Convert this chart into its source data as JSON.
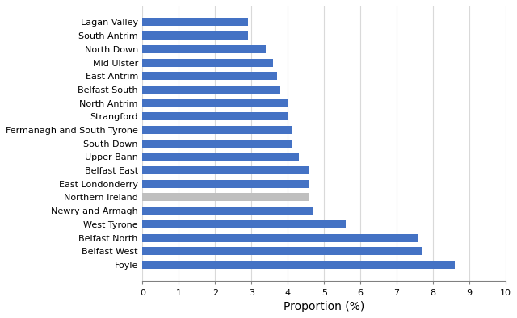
{
  "categories": [
    "Foyle",
    "Belfast West",
    "Belfast North",
    "West Tyrone",
    "Newry and Armagh",
    "Northern Ireland",
    "East Londonderry",
    "Belfast East",
    "Upper Bann",
    "South Down",
    "Fermanagh and South Tyrone",
    "Strangford",
    "North Antrim",
    "Belfast South",
    "East Antrim",
    "Mid Ulster",
    "North Down",
    "South Antrim",
    "Lagan Valley"
  ],
  "values": [
    8.6,
    7.7,
    7.6,
    5.6,
    4.7,
    4.6,
    4.6,
    4.6,
    4.3,
    4.1,
    4.1,
    4.0,
    4.0,
    3.8,
    3.7,
    3.6,
    3.4,
    2.9,
    2.9
  ],
  "bar_colors": [
    "#4472C4",
    "#4472C4",
    "#4472C4",
    "#4472C4",
    "#4472C4",
    "#BFBFBF",
    "#4472C4",
    "#4472C4",
    "#4472C4",
    "#4472C4",
    "#4472C4",
    "#4472C4",
    "#4472C4",
    "#4472C4",
    "#4472C4",
    "#4472C4",
    "#4472C4",
    "#4472C4",
    "#4472C4"
  ],
  "xlabel": "Proportion (%)",
  "xlim": [
    0,
    10
  ],
  "xticks": [
    0,
    1,
    2,
    3,
    4,
    5,
    6,
    7,
    8,
    9,
    10
  ],
  "bar_height": 0.6,
  "grid_color": "#D9D9D9",
  "background_color": "#FFFFFF",
  "label_fontsize": 8.0,
  "xlabel_fontsize": 10
}
